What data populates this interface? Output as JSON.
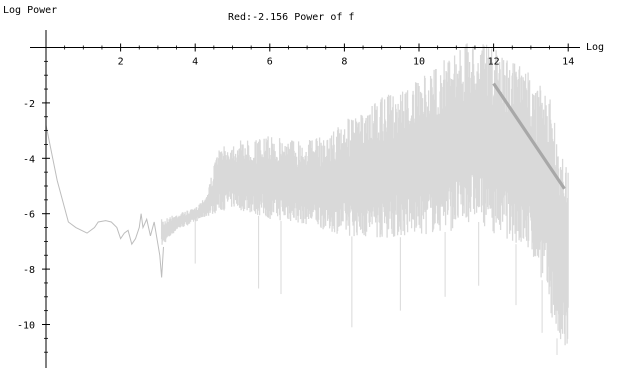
{
  "chart_data": {
    "type": "line",
    "title": "Red:-2.156 Power of f",
    "xlabel": "Log",
    "ylabel": "Log Power",
    "xlim": [
      0,
      14.3
    ],
    "ylim": [
      -11.3,
      0.35
    ],
    "x_ticks": [
      2,
      4,
      6,
      8,
      10,
      12,
      14
    ],
    "x_tick_labels": [
      "2",
      "4",
      "6",
      "8",
      "10",
      "12",
      "14"
    ],
    "y_ticks": [
      -2,
      -4,
      -6,
      -8,
      -10
    ],
    "y_tick_labels": [
      "-2",
      "-4",
      "-6",
      "-8",
      "-10"
    ],
    "grid": false,
    "series": [
      {
        "role": "spectrum",
        "color": "#d9d9d9",
        "low_freq_points": [
          [
            0.0,
            -2.8
          ],
          [
            0.3,
            -4.8
          ],
          [
            0.6,
            -6.3
          ],
          [
            0.8,
            -6.5
          ],
          [
            1.1,
            -6.7
          ],
          [
            1.3,
            -6.5
          ],
          [
            1.4,
            -6.3
          ],
          [
            1.6,
            -6.25
          ],
          [
            1.75,
            -6.3
          ],
          [
            1.9,
            -6.5
          ],
          [
            2.0,
            -6.9
          ],
          [
            2.1,
            -6.7
          ],
          [
            2.2,
            -6.6
          ],
          [
            2.3,
            -7.1
          ],
          [
            2.4,
            -6.9
          ],
          [
            2.5,
            -6.5
          ],
          [
            2.55,
            -6.0
          ],
          [
            2.6,
            -6.5
          ],
          [
            2.7,
            -6.2
          ],
          [
            2.8,
            -6.8
          ],
          [
            2.9,
            -6.3
          ],
          [
            3.0,
            -7.1
          ],
          [
            3.05,
            -7.5
          ],
          [
            3.1,
            -8.3
          ],
          [
            3.15,
            -7.2
          ]
        ],
        "band_upper": [
          [
            3.1,
            -6.2
          ],
          [
            3.5,
            -6.0
          ],
          [
            4.0,
            -5.8
          ],
          [
            4.3,
            -5.3
          ],
          [
            4.5,
            -4.3
          ],
          [
            4.6,
            -3.7
          ],
          [
            5.0,
            -3.4
          ],
          [
            6.0,
            -3.2
          ],
          [
            7.0,
            -3.3
          ],
          [
            7.5,
            -3.2
          ],
          [
            8.0,
            -2.6
          ],
          [
            8.5,
            -2.4
          ],
          [
            9.0,
            -1.8
          ],
          [
            9.5,
            -1.5
          ],
          [
            10.0,
            -1.2
          ],
          [
            10.5,
            -0.6
          ],
          [
            11.0,
            0.0
          ],
          [
            11.5,
            0.3
          ],
          [
            12.0,
            0.0
          ],
          [
            12.5,
            -0.4
          ],
          [
            13.0,
            -0.9
          ],
          [
            13.5,
            -1.8
          ],
          [
            13.9,
            -3.8
          ],
          [
            14.0,
            -4.1
          ]
        ],
        "band_lower": [
          [
            3.1,
            -7.2
          ],
          [
            3.5,
            -6.6
          ],
          [
            4.0,
            -6.3
          ],
          [
            4.5,
            -6.0
          ],
          [
            5.0,
            -5.8
          ],
          [
            6.0,
            -6.2
          ],
          [
            7.0,
            -6.4
          ],
          [
            8.0,
            -6.8
          ],
          [
            9.0,
            -6.9
          ],
          [
            10.0,
            -6.8
          ],
          [
            11.0,
            -6.6
          ],
          [
            11.5,
            -6.2
          ],
          [
            12.0,
            -6.7
          ],
          [
            12.5,
            -7.0
          ],
          [
            13.0,
            -7.5
          ],
          [
            13.3,
            -8.4
          ],
          [
            13.6,
            -10.0
          ],
          [
            13.8,
            -11.0
          ],
          [
            14.0,
            -11.2
          ]
        ],
        "spikes_down": [
          [
            4.0,
            -7.8
          ],
          [
            5.7,
            -8.7
          ],
          [
            6.3,
            -8.9
          ],
          [
            8.2,
            -10.1
          ],
          [
            9.5,
            -9.5
          ],
          [
            10.7,
            -9.0
          ],
          [
            11.6,
            -8.6
          ],
          [
            12.6,
            -9.3
          ],
          [
            13.3,
            -10.3
          ],
          [
            13.7,
            -11.1
          ]
        ]
      },
      {
        "name": "Red:-2.156 Power of f",
        "role": "fit",
        "slope": -2.156,
        "color": "#a8a8a8",
        "x": [
          12.0,
          13.9
        ],
        "y": [
          -1.3,
          -5.1
        ]
      }
    ]
  }
}
